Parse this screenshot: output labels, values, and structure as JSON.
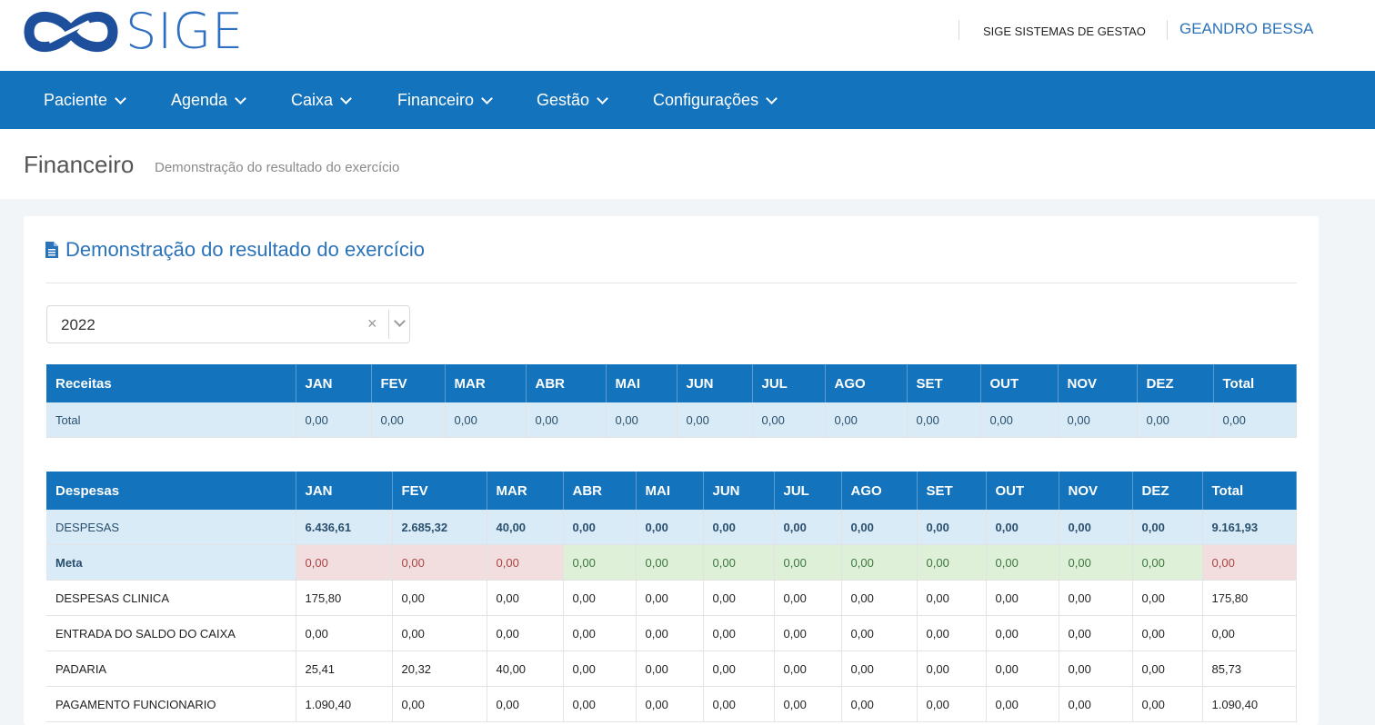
{
  "header": {
    "logo_text": "SIGE",
    "company": "SIGE SISTEMAS DE GESTAO",
    "user": "GEANDRO BESSA"
  },
  "nav": {
    "items": [
      {
        "label": "Paciente"
      },
      {
        "label": "Agenda"
      },
      {
        "label": "Caixa"
      },
      {
        "label": "Financeiro"
      },
      {
        "label": "Gestão"
      },
      {
        "label": "Configurações"
      }
    ]
  },
  "page": {
    "title": "Financeiro",
    "subtitle": "Demonstração do resultado do exercício"
  },
  "panel": {
    "title": "Demonstração do resultado do exercício",
    "year_select": {
      "value": "2022",
      "clear_symbol": "×"
    }
  },
  "receitas": {
    "headers": [
      "Receitas",
      "JAN",
      "FEV",
      "MAR",
      "ABR",
      "MAI",
      "JUN",
      "JUL",
      "AGO",
      "SET",
      "OUT",
      "NOV",
      "DEZ",
      "Total"
    ],
    "rows": [
      [
        "Total",
        "0,00",
        "0,00",
        "0,00",
        "0,00",
        "0,00",
        "0,00",
        "0,00",
        "0,00",
        "0,00",
        "0,00",
        "0,00",
        "0,00",
        "0,00"
      ]
    ]
  },
  "despesas": {
    "headers": [
      "Despesas",
      "JAN",
      "FEV",
      "MAR",
      "ABR",
      "MAI",
      "JUN",
      "JUL",
      "AGO",
      "SET",
      "OUT",
      "NOV",
      "DEZ",
      "Total"
    ],
    "rows": [
      [
        "DESPESAS",
        "6.436,61",
        "2.685,32",
        "40,00",
        "0,00",
        "0,00",
        "0,00",
        "0,00",
        "0,00",
        "0,00",
        "0,00",
        "0,00",
        "0,00",
        "9.161,93"
      ],
      [
        "Meta",
        "0,00",
        "0,00",
        "0,00",
        "0,00",
        "0,00",
        "0,00",
        "0,00",
        "0,00",
        "0,00",
        "0,00",
        "0,00",
        "0,00",
        "0,00"
      ],
      [
        "DESPESAS CLINICA",
        "175,80",
        "0,00",
        "0,00",
        "0,00",
        "0,00",
        "0,00",
        "0,00",
        "0,00",
        "0,00",
        "0,00",
        "0,00",
        "0,00",
        "175,80"
      ],
      [
        "ENTRADA DO SALDO DO CAIXA",
        "0,00",
        "0,00",
        "0,00",
        "0,00",
        "0,00",
        "0,00",
        "0,00",
        "0,00",
        "0,00",
        "0,00",
        "0,00",
        "0,00",
        "0,00"
      ],
      [
        "PADARIA",
        "25,41",
        "20,32",
        "40,00",
        "0,00",
        "0,00",
        "0,00",
        "0,00",
        "0,00",
        "0,00",
        "0,00",
        "0,00",
        "0,00",
        "85,73"
      ],
      [
        "PAGAMENTO FUNCIONARIO",
        "1.090,40",
        "0,00",
        "0,00",
        "0,00",
        "0,00",
        "0,00",
        "0,00",
        "0,00",
        "0,00",
        "0,00",
        "0,00",
        "0,00",
        "1.090,40"
      ]
    ]
  },
  "colors": {
    "primary": "#1473bd",
    "link": "#2b73b8",
    "row_blue": "#d9ebf6",
    "meta_red": "#f2dede",
    "meta_green": "#dff0d8"
  }
}
